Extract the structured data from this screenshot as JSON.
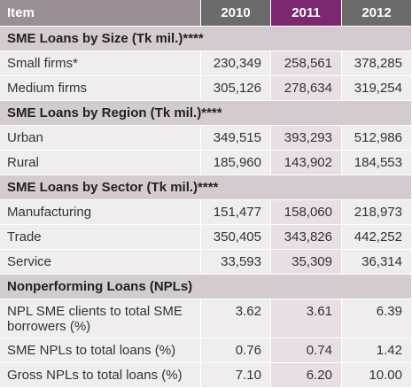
{
  "header": {
    "item": "Item",
    "years": [
      "2010",
      "2011",
      "2012"
    ]
  },
  "sections": [
    {
      "title": "SME Loans by Size (Tk mil.)****",
      "rows": [
        {
          "label": "Small firms*",
          "values": [
            "230,349",
            "258,561",
            "378,285"
          ]
        },
        {
          "label": "Medium firms",
          "values": [
            "305,126",
            "278,634",
            "319,254"
          ]
        }
      ]
    },
    {
      "title": "SME Loans by Region (Tk mil.)****",
      "rows": [
        {
          "label": "Urban",
          "values": [
            "349,515",
            "393,293",
            "512,986"
          ]
        },
        {
          "label": "Rural",
          "values": [
            "185,960",
            "143,902",
            "184,553"
          ]
        }
      ]
    },
    {
      "title": "SME Loans by Sector (Tk mil.)****",
      "rows": [
        {
          "label": "Manufacturing",
          "values": [
            "151,477",
            "158,060",
            "218,973"
          ]
        },
        {
          "label": "Trade",
          "values": [
            "350,405",
            "343,826",
            "442,252"
          ]
        },
        {
          "label": "Service",
          "values": [
            "33,593",
            "35,309",
            "36,314"
          ]
        }
      ]
    },
    {
      "title": "Nonperforming Loans (NPLs)",
      "rows": [
        {
          "label": "NPL SME clients to total SME borrowers (%)",
          "values": [
            "3.62",
            "3.61",
            "6.39"
          ]
        },
        {
          "label": "SME NPLs to total loans (%)",
          "values": [
            "0.76",
            "0.74",
            "1.42"
          ]
        },
        {
          "label": "Gross NPLs to total loans (%)",
          "values": [
            "7.10",
            "6.20",
            "10.00"
          ]
        }
      ]
    }
  ]
}
